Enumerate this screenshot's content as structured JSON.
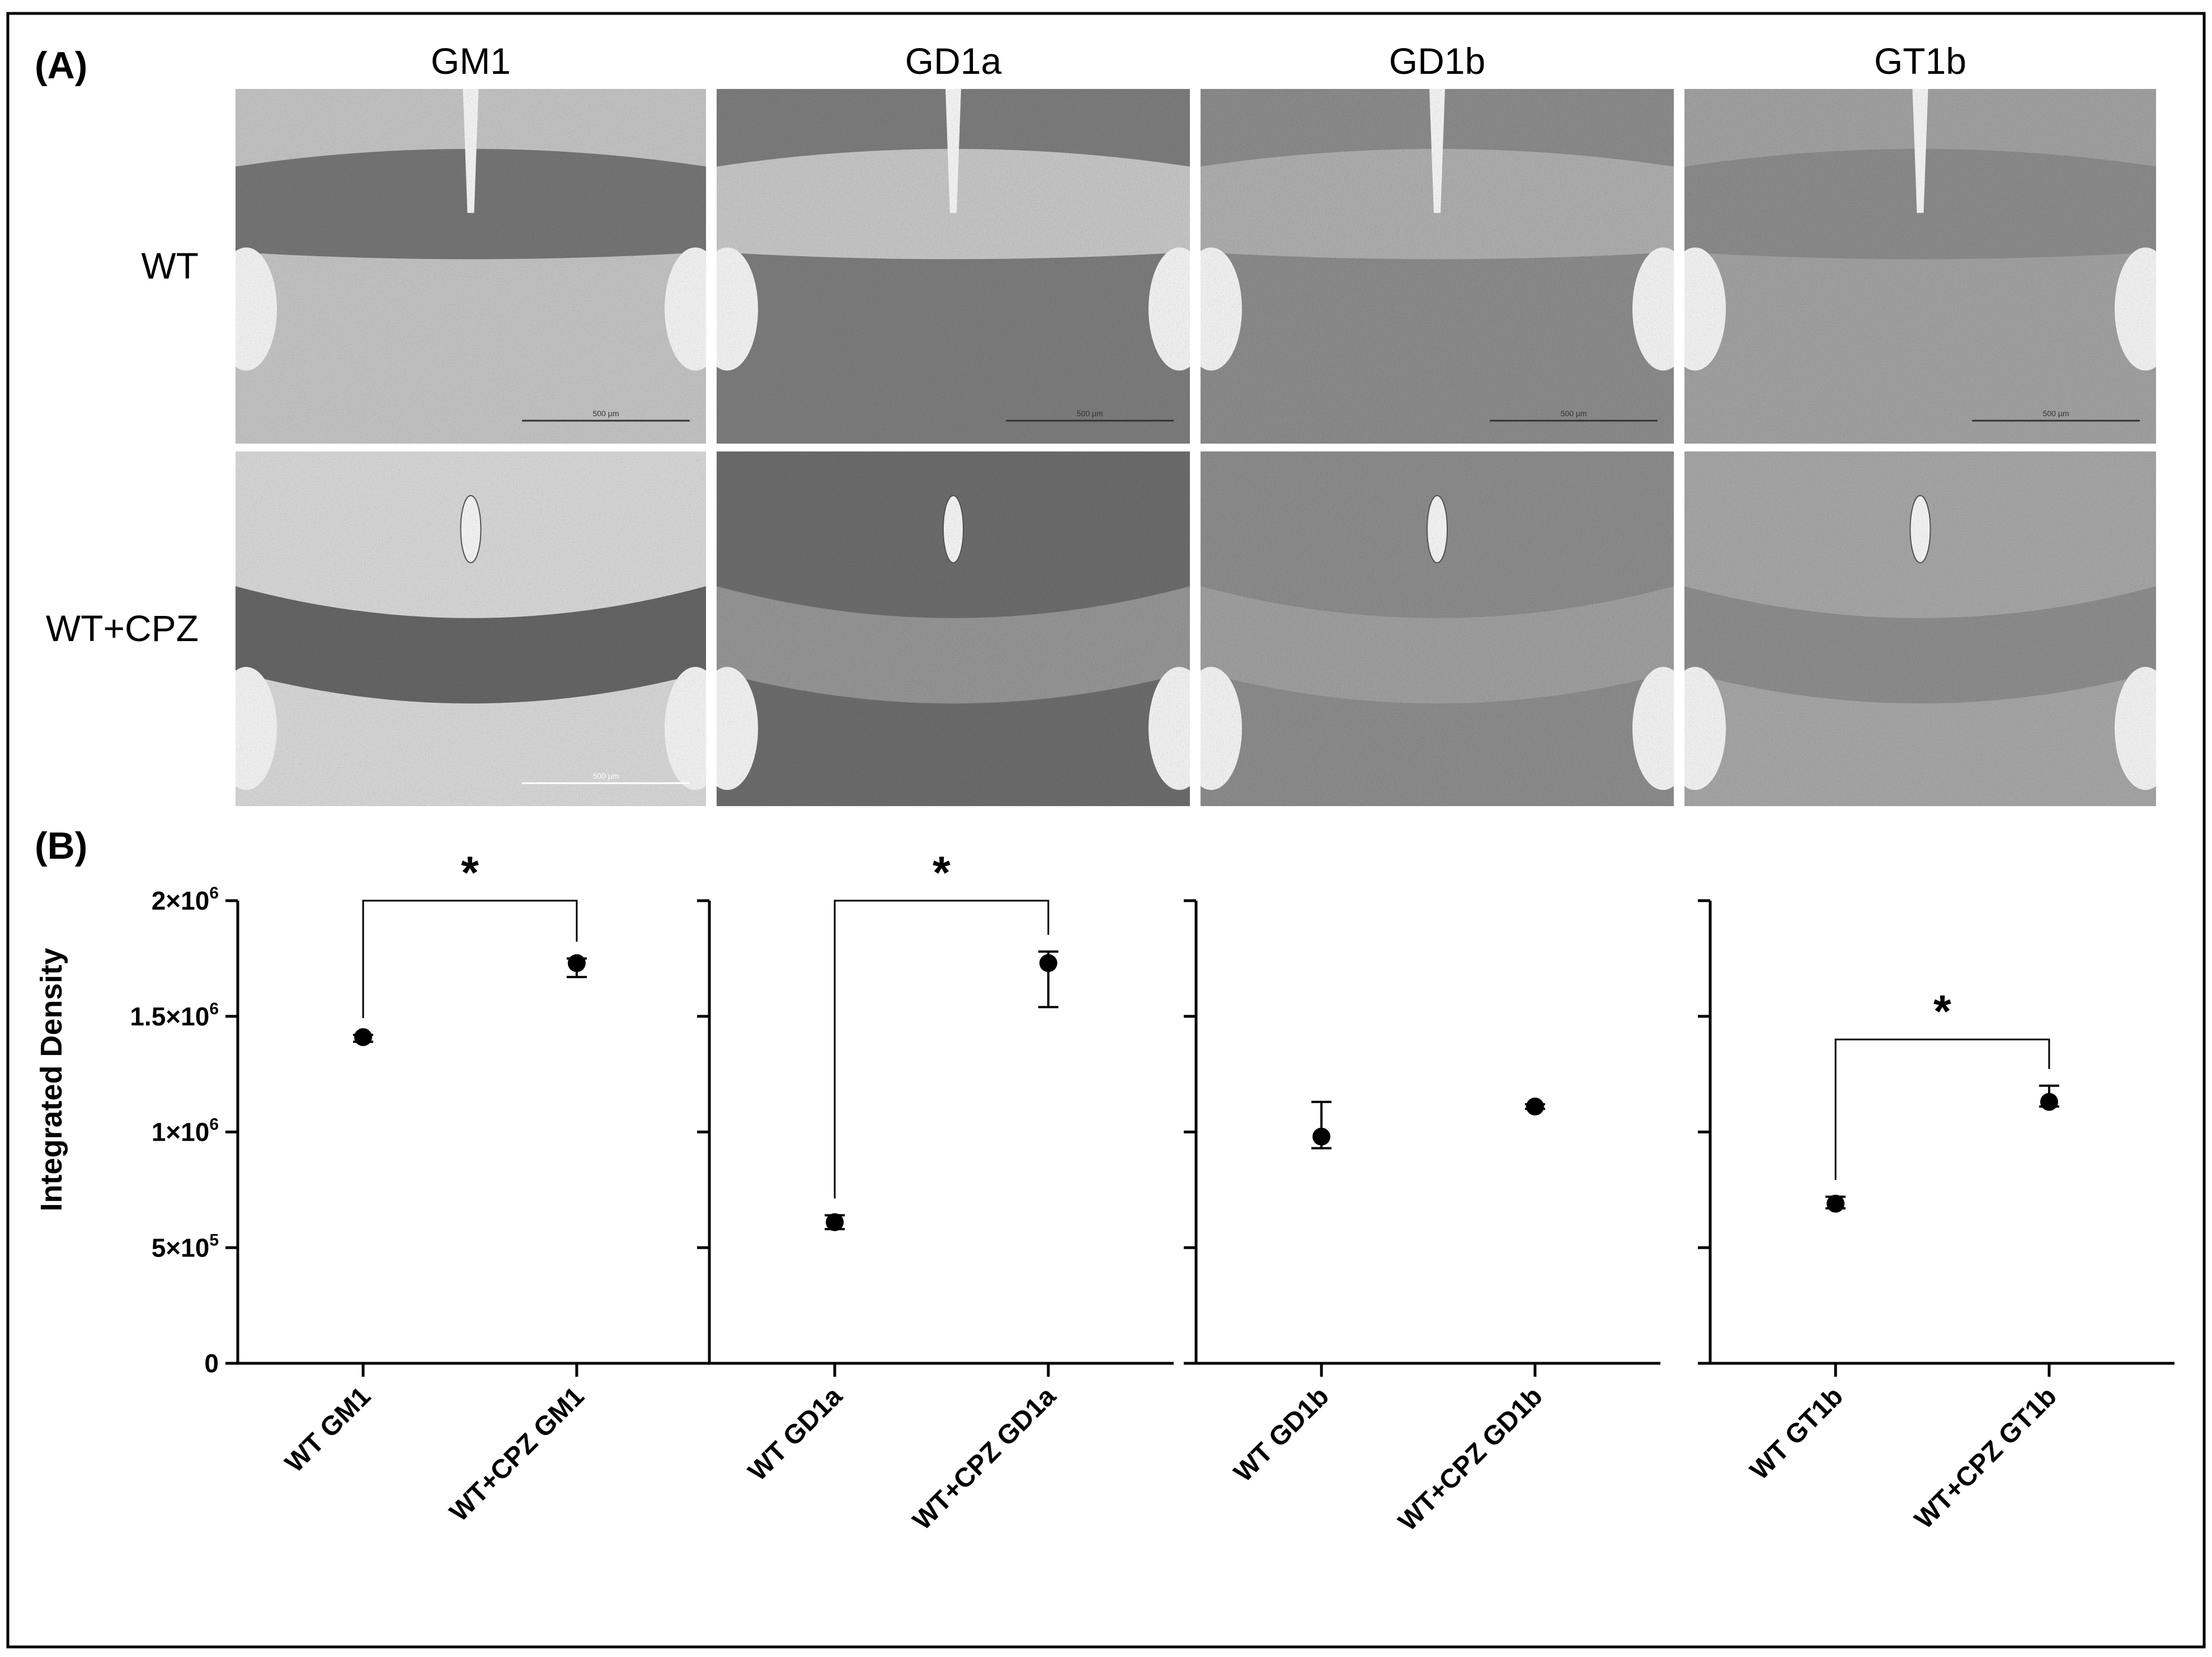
{
  "panel_labels": {
    "a": "(A)",
    "b": "(B)"
  },
  "micrographs": {
    "columns": [
      "GM1",
      "GD1a",
      "GD1b",
      "GT1b"
    ],
    "rows": [
      "WT",
      "WT+CPZ"
    ],
    "scale_bar_text": "500 µm",
    "tones": [
      [
        "#c4c4c4",
        "#7d7d7d",
        "#8c8c8c",
        "#a2a2a2"
      ],
      [
        "#d8d8d8",
        "#6d6d6d",
        "#8d8d8d",
        "#a7a7a7"
      ]
    ],
    "tract_tones": [
      [
        "#6e6e6e",
        "#cfcfcf",
        "#b3b3b3",
        "#8a8a8a"
      ],
      [
        "#5a5a5a",
        "#9a9a9a",
        "#a2a2a2",
        "#8c8c8c"
      ]
    ]
  },
  "chart_data": {
    "type": "scatter",
    "ylabel": "Integrated Density",
    "ylim": [
      0,
      2000000
    ],
    "yticks": [
      {
        "value": 0,
        "base": "0",
        "exp": ""
      },
      {
        "value": 500000,
        "base": "5×10",
        "exp": "5"
      },
      {
        "value": 1000000,
        "base": "1×10",
        "exp": "6"
      },
      {
        "value": 1500000,
        "base": "1.5×10",
        "exp": "6"
      },
      {
        "value": 2000000,
        "base": "2×10",
        "exp": "6"
      }
    ],
    "significance_marker": "*",
    "panels": [
      {
        "categories": [
          "WT GM1",
          "WT+CPZ GM1"
        ],
        "points": [
          {
            "y": 1410000,
            "err_low": 1390000,
            "err_high": 1420000
          },
          {
            "y": 1730000,
            "err_low": 1670000,
            "err_high": 1750000
          }
        ],
        "significant": true,
        "bracket_y": 2000000
      },
      {
        "categories": [
          "WT GD1a",
          "WT+CPZ GD1a"
        ],
        "points": [
          {
            "y": 610000,
            "err_low": 580000,
            "err_high": 640000
          },
          {
            "y": 1730000,
            "err_low": 1540000,
            "err_high": 1780000
          }
        ],
        "significant": true,
        "bracket_y": 2000000
      },
      {
        "categories": [
          "WT GD1b",
          "WT+CPZ GD1b"
        ],
        "points": [
          {
            "y": 980000,
            "err_low": 930000,
            "err_high": 1130000
          },
          {
            "y": 1110000,
            "err_low": 1100000,
            "err_high": 1120000
          }
        ],
        "significant": false
      },
      {
        "categories": [
          "WT GT1b",
          "WT+CPZ GT1b"
        ],
        "points": [
          {
            "y": 690000,
            "err_low": 670000,
            "err_high": 720000
          },
          {
            "y": 1130000,
            "err_low": 1110000,
            "err_high": 1200000
          }
        ],
        "significant": true,
        "bracket_y": 1400000
      }
    ]
  }
}
